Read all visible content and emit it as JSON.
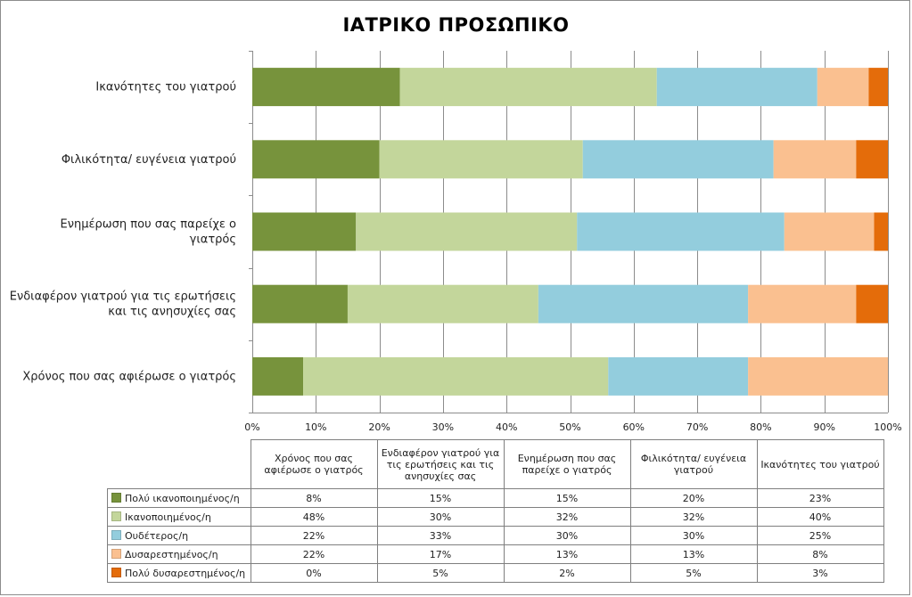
{
  "chart_data": {
    "type": "bar",
    "orientation": "horizontal",
    "stacked": "percent",
    "title": "ΙΑΤΡΙΚΟ ΠΡΟΣΩΠΙΚΟ",
    "categories": [
      "Ικανότητες του γιατρού",
      "Φιλικότητα/ ευγένεια γιατρού",
      "Ενημέρωση που σας παρείχε ο γιατρός",
      "Ενδιαφέρον γιατρού για τις ερωτήσεις και τις ανησυχίες σας",
      "Χρόνος που σας αφιέρωσε ο γιατρός"
    ],
    "category_label_lines": [
      [
        "Ικανότητες του γιατρού"
      ],
      [
        "Φιλικότητα/ ευγένεια γιατρού"
      ],
      [
        "Ενημέρωση που σας παρείχε ο",
        "γιατρός"
      ],
      [
        "Ενδιαφέρον γιατρού για τις ερωτήσεις",
        "και τις ανησυχίες σας"
      ],
      [
        "Χρόνος που σας αφιέρωσε ο γιατρός"
      ]
    ],
    "series": [
      {
        "name": "Πολύ ικανοποιημένος/η",
        "color": "#77933c",
        "values": [
          23,
          20,
          15,
          15,
          8
        ]
      },
      {
        "name": "Ικανοποιημένος/η",
        "color": "#c3d69b",
        "values": [
          40,
          32,
          32,
          30,
          48
        ]
      },
      {
        "name": "Ουδέτερος/η",
        "color": "#93cddd",
        "values": [
          25,
          30,
          30,
          33,
          22
        ]
      },
      {
        "name": "Δυσαρεστημένος/η",
        "color": "#fac090",
        "values": [
          8,
          13,
          13,
          17,
          22
        ]
      },
      {
        "name": "Πολύ δυσαρεστημένος/η",
        "color": "#e46c0a",
        "values": [
          3,
          5,
          2,
          5,
          0
        ]
      }
    ],
    "xlim": [
      0,
      100
    ],
    "x_ticks": [
      "0%",
      "10%",
      "20%",
      "30%",
      "40%",
      "50%",
      "60%",
      "70%",
      "80%",
      "90%",
      "100%"
    ],
    "grid": true,
    "legend": "data table below chart"
  },
  "data_table": {
    "column_headers": [
      "Χρόνος που σας αφιέρωσε ο γιατρός",
      "Ενδιαφέρον γιατρού για τις ερωτήσεις και τις ανησυχίες σας",
      "Ενημέρωση που σας παρείχε ο γιατρός",
      "Φιλικότητα/ ευγένεια γιατρού",
      "Ικανότητες του γιατρού"
    ],
    "rows": [
      {
        "label": "Πολύ ικανοποιημένος/η",
        "color": "#77933c",
        "cells": [
          "8%",
          "15%",
          "15%",
          "20%",
          "23%"
        ]
      },
      {
        "label": "Ικανοποιημένος/η",
        "color": "#c3d69b",
        "cells": [
          "48%",
          "30%",
          "32%",
          "32%",
          "40%"
        ]
      },
      {
        "label": "Ουδέτερος/η",
        "color": "#93cddd",
        "cells": [
          "22%",
          "33%",
          "30%",
          "30%",
          "25%"
        ]
      },
      {
        "label": "Δυσαρεστημένος/η",
        "color": "#fac090",
        "cells": [
          "22%",
          "17%",
          "13%",
          "13%",
          "8%"
        ]
      },
      {
        "label": "Πολύ δυσαρεστημένος/η",
        "color": "#e46c0a",
        "cells": [
          "0%",
          "5%",
          "2%",
          "5%",
          "3%"
        ]
      }
    ]
  }
}
